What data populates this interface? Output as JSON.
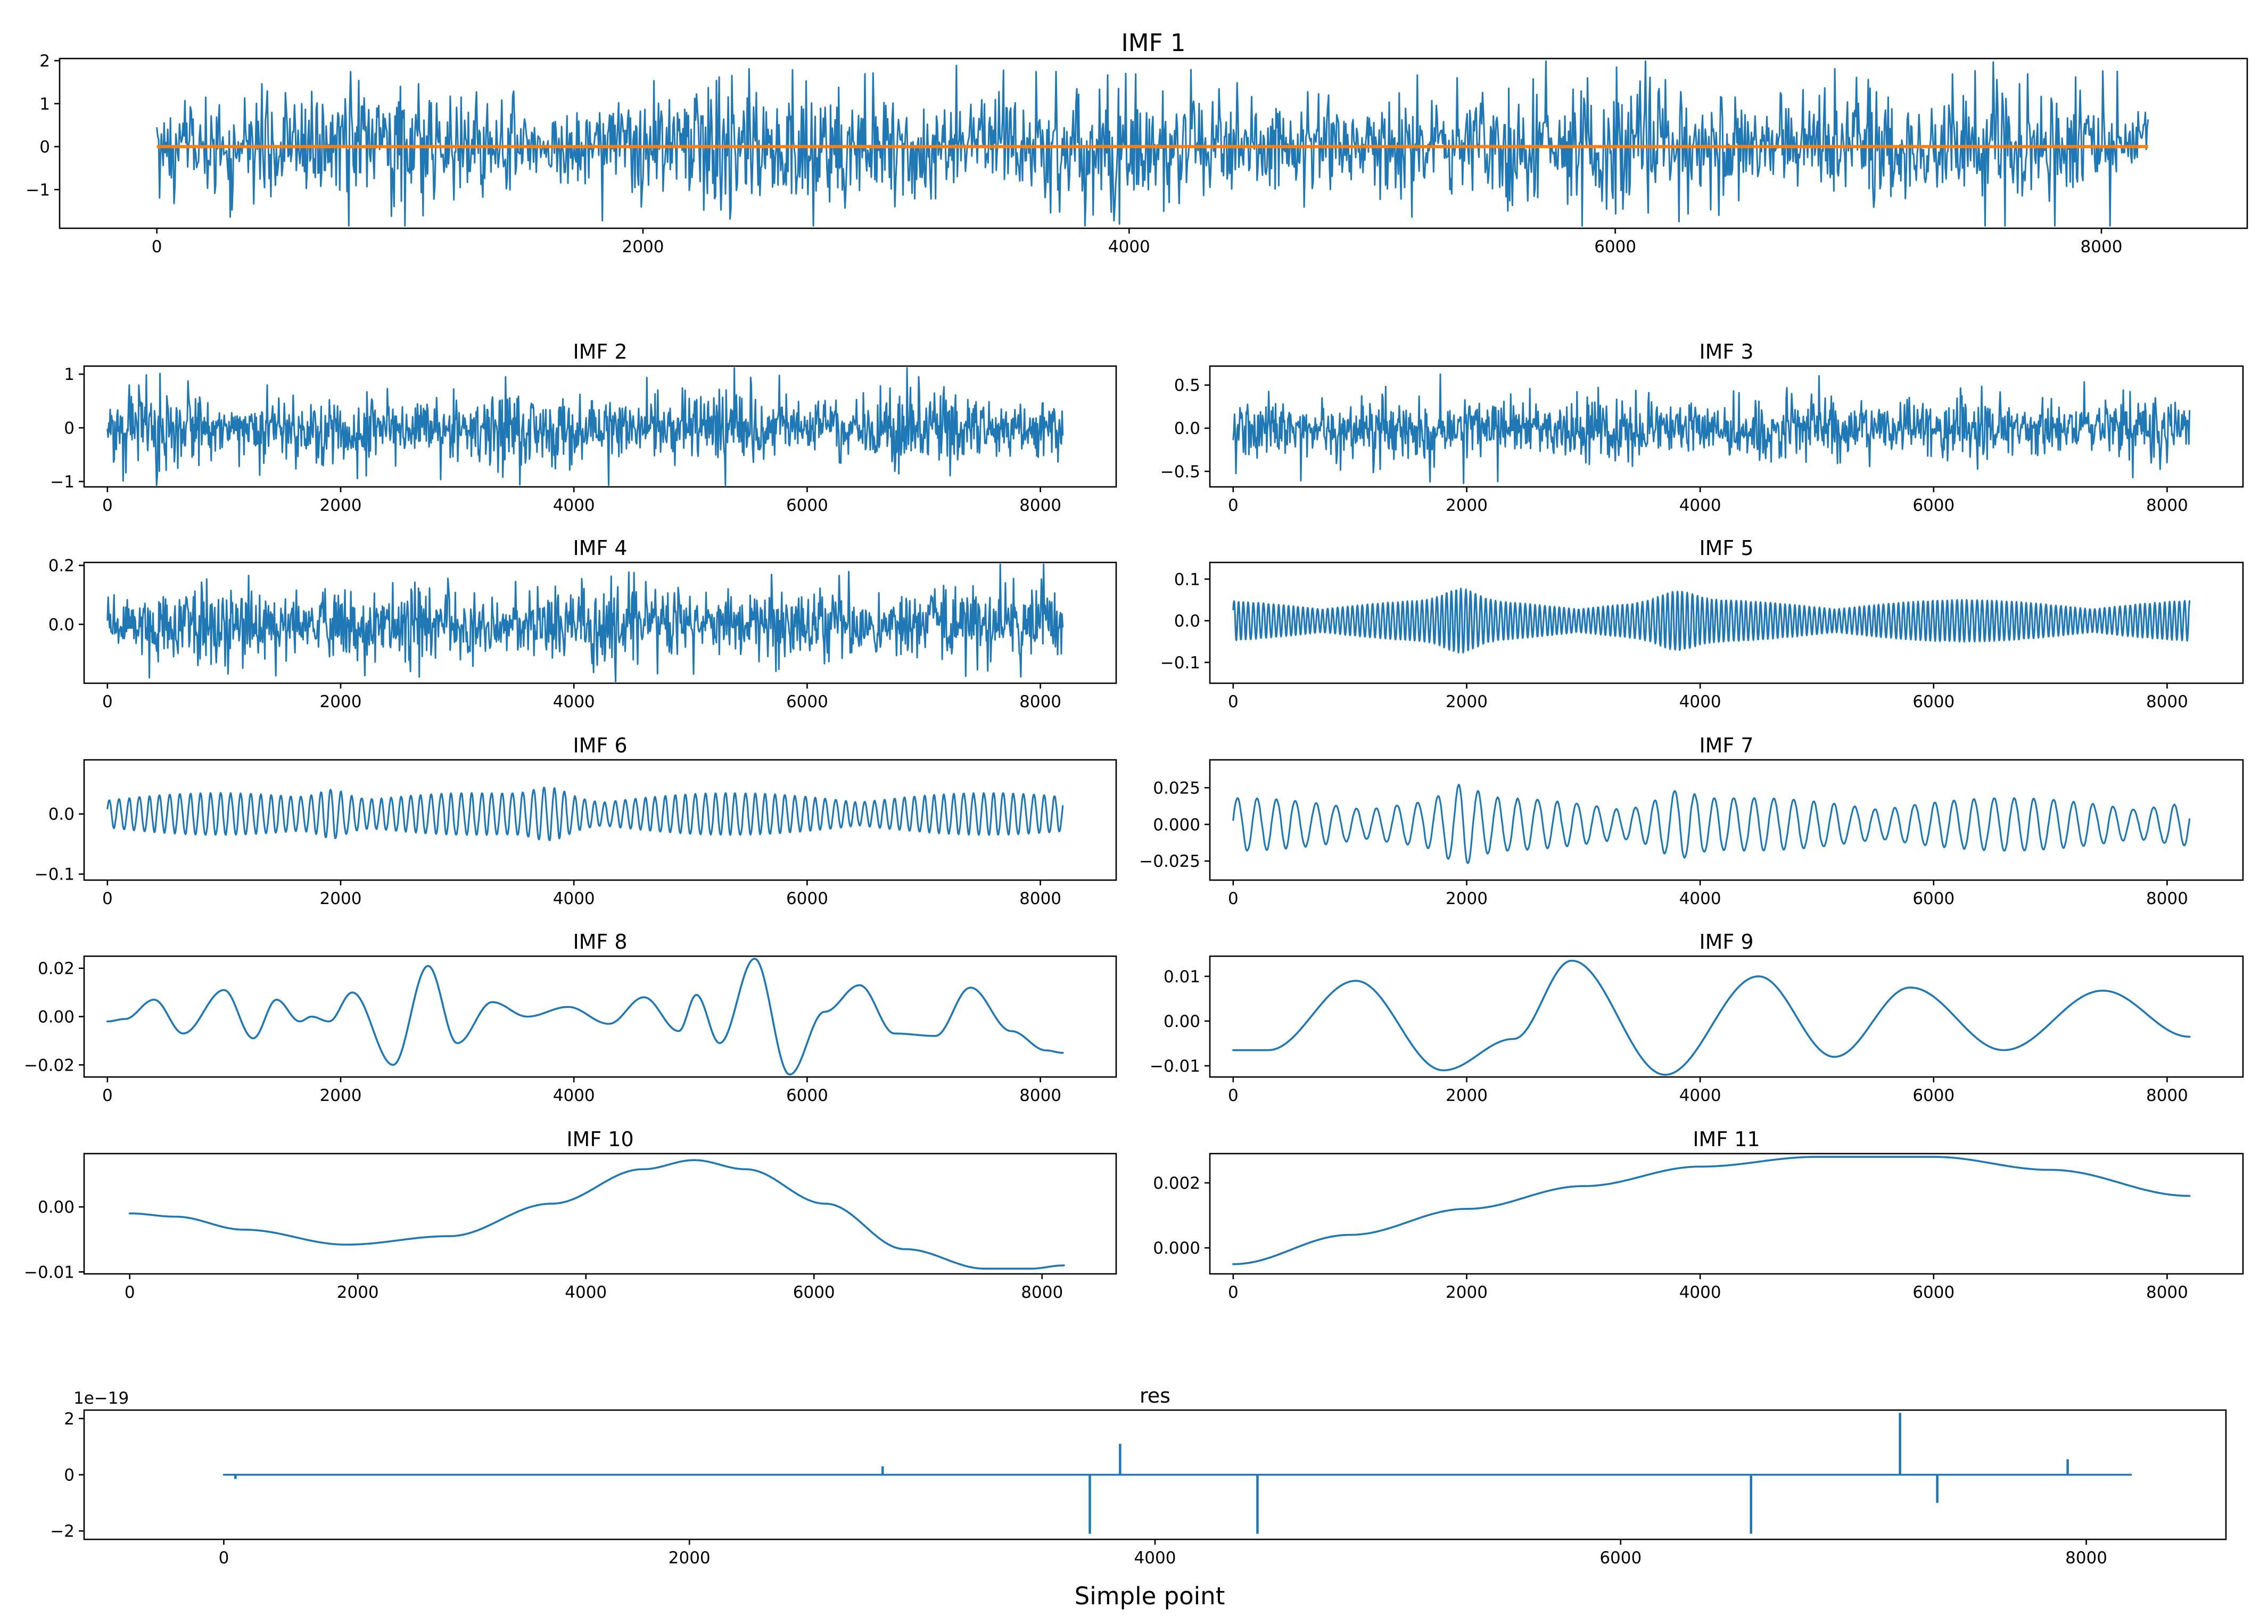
{
  "figure": {
    "xlabel": "Simple point"
  },
  "colors": {
    "series": "#1f77b4",
    "overlay": "#ff7f0e"
  },
  "chart_data": [
    {
      "id": "imf1",
      "type": "line",
      "title": "IMF 1",
      "signal": "noise",
      "n": 8192,
      "xlim": [
        -400,
        8600
      ],
      "ylim": [
        -1.9,
        2.05
      ],
      "xticks": [
        0,
        2000,
        4000,
        6000,
        8000
      ],
      "yticks": [
        -1,
        0,
        1,
        2
      ],
      "xtick_labels": [
        "0",
        "2000",
        "4000",
        "6000",
        "8000"
      ],
      "ytick_labels": [
        "−1",
        "0",
        "1",
        "2"
      ],
      "amplitude": 0.45,
      "peak": 1.9,
      "samples": 2200,
      "overlay": {
        "label": "",
        "y": 0
      }
    },
    {
      "id": "imf2",
      "type": "line",
      "title": "IMF 2",
      "signal": "noise",
      "n": 8192,
      "xlim": [
        -200,
        8650
      ],
      "ylim": [
        -1.1,
        1.15
      ],
      "xticks": [
        0,
        2000,
        4000,
        6000,
        8000
      ],
      "yticks": [
        -1,
        0,
        1
      ],
      "xtick_labels": [
        "0",
        "2000",
        "4000",
        "6000",
        "8000"
      ],
      "ytick_labels": [
        "−1",
        "0",
        "1"
      ],
      "amplitude": 0.22,
      "peak": 0.98,
      "samples": 1400
    },
    {
      "id": "imf3",
      "type": "line",
      "title": "IMF 3",
      "signal": "noise",
      "n": 8192,
      "xlim": [
        -200,
        8650
      ],
      "ylim": [
        -0.68,
        0.72
      ],
      "xticks": [
        0,
        2000,
        4000,
        6000,
        8000
      ],
      "yticks": [
        -0.5,
        0.0,
        0.5
      ],
      "xtick_labels": [
        "0",
        "2000",
        "4000",
        "6000",
        "8000"
      ],
      "ytick_labels": [
        "−0.5",
        "0.0",
        "0.5"
      ],
      "amplitude": 0.12,
      "peak": 0.65,
      "samples": 1400
    },
    {
      "id": "imf4",
      "type": "line",
      "title": "IMF 4",
      "signal": "noise",
      "n": 8192,
      "xlim": [
        -200,
        8650
      ],
      "ylim": [
        -0.2,
        0.21
      ],
      "xticks": [
        0,
        2000,
        4000,
        6000,
        8000
      ],
      "yticks": [
        0.0,
        0.2
      ],
      "xtick_labels": [
        "0",
        "2000",
        "4000",
        "6000",
        "8000"
      ],
      "ytick_labels": [
        "0.0",
        "0.2"
      ],
      "amplitude": 0.045,
      "peak": 0.18,
      "samples": 1300
    },
    {
      "id": "imf5",
      "type": "line",
      "title": "IMF 5",
      "signal": "wave",
      "n": 8192,
      "xlim": [
        -200,
        8650
      ],
      "ylim": [
        -0.15,
        0.14
      ],
      "xticks": [
        0,
        2000,
        4000,
        6000,
        8000
      ],
      "yticks": [
        -0.1,
        0.0,
        0.1
      ],
      "xtick_labels": [
        "0",
        "2000",
        "4000",
        "6000",
        "8000"
      ],
      "ytick_labels": [
        "−0.1",
        "0.0",
        "0.1"
      ],
      "cycles": 195,
      "amplitude": 0.05,
      "peak": 0.13,
      "samples": 2400
    },
    {
      "id": "imf6",
      "type": "line",
      "title": "IMF 6",
      "signal": "wave",
      "n": 8192,
      "xlim": [
        -200,
        8650
      ],
      "ylim": [
        -0.11,
        0.09
      ],
      "xticks": [
        0,
        2000,
        4000,
        6000,
        8000
      ],
      "yticks": [
        -0.1,
        0.0
      ],
      "xtick_labels": [
        "0",
        "2000",
        "4000",
        "6000",
        "8000"
      ],
      "ytick_labels": [
        "−0.1",
        "0.0"
      ],
      "cycles": 95,
      "amplitude": 0.035,
      "peak": 0.1,
      "samples": 1800
    },
    {
      "id": "imf7",
      "type": "line",
      "title": "IMF 7",
      "signal": "wave",
      "n": 8192,
      "xlim": [
        -200,
        8650
      ],
      "ylim": [
        -0.038,
        0.044
      ],
      "xticks": [
        0,
        2000,
        4000,
        6000,
        8000
      ],
      "yticks": [
        -0.025,
        0.0,
        0.025
      ],
      "xtick_labels": [
        "0",
        "2000",
        "4000",
        "6000",
        "8000"
      ],
      "ytick_labels": [
        "−0.025",
        "0.000",
        "0.025"
      ],
      "cycles": 48,
      "amplitude": 0.018,
      "peak": 0.042,
      "samples": 1400
    },
    {
      "id": "imf8",
      "type": "line",
      "title": "IMF 8",
      "signal": "points",
      "n": 8192,
      "xlim": [
        -200,
        8650
      ],
      "ylim": [
        -0.025,
        0.025
      ],
      "xticks": [
        0,
        2000,
        4000,
        6000,
        8000
      ],
      "yticks": [
        -0.02,
        0.0,
        0.02
      ],
      "xtick_labels": [
        "0",
        "2000",
        "4000",
        "6000",
        "8000"
      ],
      "ytick_labels": [
        "−0.02",
        "0.00",
        "0.02"
      ],
      "x": [
        0,
        150,
        400,
        650,
        1000,
        1250,
        1450,
        1650,
        1750,
        1900,
        2100,
        2450,
        2750,
        3000,
        3300,
        3600,
        3950,
        4300,
        4600,
        4900,
        5050,
        5250,
        5550,
        5850,
        6150,
        6450,
        6750,
        7100,
        7400,
        7750,
        8050,
        8192
      ],
      "y": [
        -0.002,
        -0.001,
        0.007,
        -0.007,
        0.011,
        -0.009,
        0.007,
        -0.002,
        0.0,
        -0.002,
        0.01,
        -0.02,
        0.021,
        -0.011,
        0.006,
        0.0,
        0.004,
        -0.003,
        0.008,
        -0.006,
        0.009,
        -0.011,
        0.024,
        -0.024,
        0.002,
        0.013,
        -0.007,
        -0.008,
        0.012,
        -0.006,
        -0.014,
        -0.015
      ]
    },
    {
      "id": "imf9",
      "type": "line",
      "title": "IMF 9",
      "signal": "points",
      "n": 8192,
      "xlim": [
        -200,
        8650
      ],
      "ylim": [
        -0.0125,
        0.0145
      ],
      "xticks": [
        0,
        2000,
        4000,
        6000,
        8000
      ],
      "yticks": [
        -0.01,
        0.0,
        0.01
      ],
      "xtick_labels": [
        "0",
        "2000",
        "4000",
        "6000",
        "8000"
      ],
      "ytick_labels": [
        "−0.01",
        "0.00",
        "0.01"
      ],
      "x": [
        0,
        300,
        1050,
        1800,
        2400,
        2900,
        3700,
        4500,
        5150,
        5800,
        6600,
        7450,
        8192
      ],
      "y": [
        -0.0065,
        -0.0065,
        0.009,
        -0.011,
        -0.004,
        0.0135,
        -0.012,
        0.01,
        -0.008,
        0.0075,
        -0.0065,
        0.0068,
        -0.0035
      ]
    },
    {
      "id": "imf10",
      "type": "line",
      "title": "IMF 10",
      "signal": "points",
      "n": 8192,
      "xlim": [
        -400,
        8650
      ],
      "ylim": [
        -0.0103,
        0.0082
      ],
      "xticks": [
        0,
        2000,
        4000,
        6000,
        8000
      ],
      "yticks": [
        -0.01,
        0.0
      ],
      "xtick_labels": [
        "0",
        "2000",
        "4000",
        "6000",
        "8000"
      ],
      "ytick_labels": [
        "−0.01",
        "0.00"
      ],
      "x": [
        0,
        400,
        1000,
        1900,
        2800,
        3700,
        4500,
        4950,
        5400,
        6100,
        6800,
        7500,
        7900,
        8192
      ],
      "y": [
        -0.001,
        -0.0015,
        -0.0035,
        -0.0058,
        -0.0045,
        0.0005,
        0.0058,
        0.0072,
        0.0058,
        0.0005,
        -0.0065,
        -0.0095,
        -0.0095,
        -0.009
      ]
    },
    {
      "id": "imf11",
      "type": "line",
      "title": "IMF 11",
      "signal": "points",
      "n": 8192,
      "xlim": [
        -200,
        8650
      ],
      "ylim": [
        -0.0008,
        0.0029
      ],
      "xticks": [
        0,
        2000,
        4000,
        6000,
        8000
      ],
      "yticks": [
        0.0,
        0.002
      ],
      "xtick_labels": [
        "0",
        "2000",
        "4000",
        "6000",
        "8000"
      ],
      "ytick_labels": [
        "0.000",
        "0.002"
      ],
      "x": [
        0,
        1000,
        2000,
        3000,
        4000,
        5000,
        6000,
        7000,
        8192
      ],
      "y": [
        -0.0005,
        0.0004,
        0.0012,
        0.0019,
        0.0025,
        0.0028,
        0.0028,
        0.0024,
        0.0016
      ]
    },
    {
      "id": "res",
      "type": "line",
      "title": "res",
      "signal": "spikes",
      "n": 8192,
      "xlim": [
        -600,
        8600
      ],
      "ylim": [
        -2.3,
        2.3
      ],
      "xticks": [
        0,
        2000,
        4000,
        6000,
        8000
      ],
      "yticks": [
        -2,
        0,
        2
      ],
      "xtick_labels": [
        "0",
        "2000",
        "4000",
        "6000",
        "8000"
      ],
      "ytick_labels": [
        "−2",
        "0",
        "2"
      ],
      "offset_text": "1e−19",
      "spikes": [
        {
          "x": 50,
          "y": -0.15
        },
        {
          "x": 2830,
          "y": 0.3
        },
        {
          "x": 3720,
          "y": -2.1
        },
        {
          "x": 3850,
          "y": 1.1
        },
        {
          "x": 4440,
          "y": -2.1
        },
        {
          "x": 6560,
          "y": -2.1
        },
        {
          "x": 7200,
          "y": 2.2
        },
        {
          "x": 7360,
          "y": -1.0
        },
        {
          "x": 7920,
          "y": 0.55
        }
      ]
    }
  ]
}
